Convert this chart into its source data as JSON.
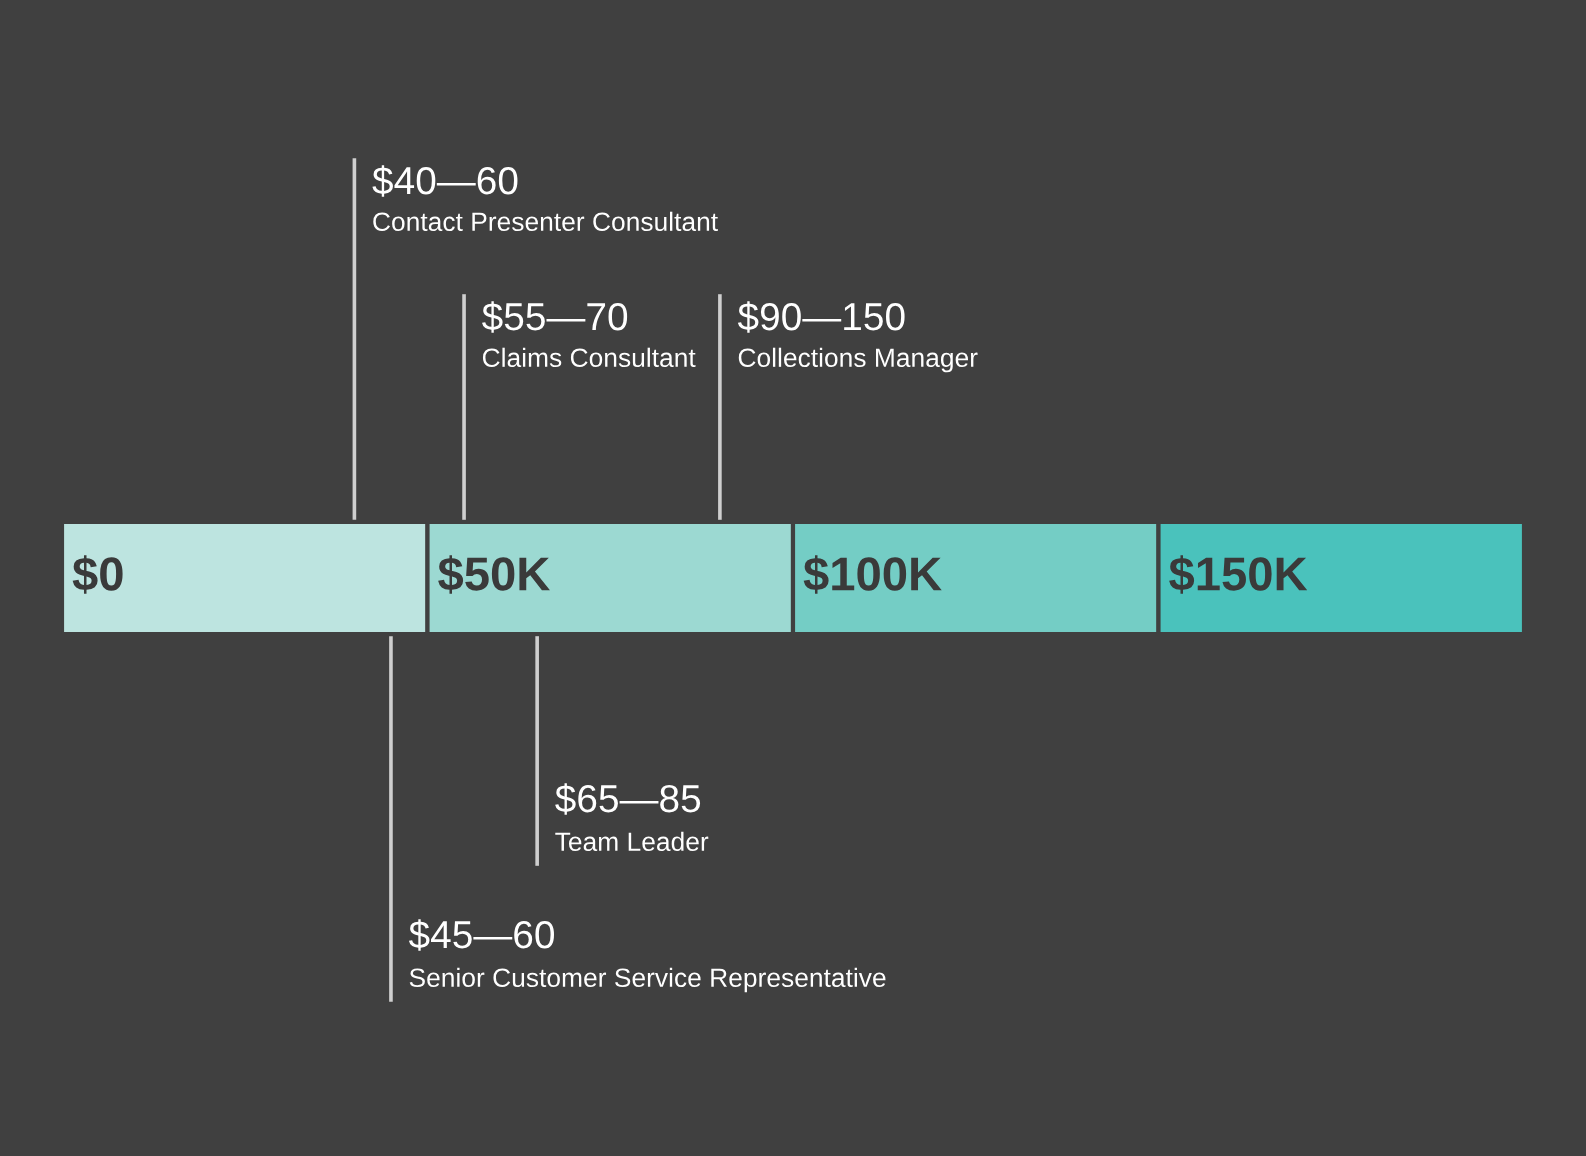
{
  "chart_data": {
    "type": "bar",
    "orientation": "horizontal",
    "stacked": true,
    "categories": [
      null
    ],
    "series": [
      {
        "color": "#bde4e0",
        "values": [
          50
        ]
      },
      {
        "color": "#9cd9d2",
        "values": [
          50
        ]
      },
      {
        "color": "#74cdc5",
        "values": [
          50
        ]
      },
      {
        "color": "#4ac2bc",
        "values": [
          50
        ]
      }
    ],
    "xlim": [
      0,
      200
    ],
    "tick_labels": false,
    "annotations": [
      {
        "text": "$0",
        "x": 0
      },
      {
        "text": "$50K",
        "x": 50
      },
      {
        "text": "$100K",
        "x": 100
      },
      {
        "text": "$150K",
        "x": 150
      }
    ],
    "ref_lines": [
      {
        "axis": "x",
        "value": 40,
        "label": "$40—60\nContact Presenter Consultant",
        "color": "#cfcfcf"
      },
      {
        "axis": "x",
        "value": 45,
        "label": "$45—60\nSenior Customer Service Representative",
        "color": "#cfcfcf"
      },
      {
        "axis": "x",
        "value": 55,
        "label": "$55—70\nClaims Consultant",
        "color": "#cfcfcf"
      },
      {
        "axis": "x",
        "value": 65,
        "label": "$65—85\nTeam Leader",
        "color": "#cfcfcf"
      },
      {
        "axis": "x",
        "value": 90,
        "label": "$90—150\nCollections Manager",
        "color": "#cfcfcf"
      }
    ]
  }
}
